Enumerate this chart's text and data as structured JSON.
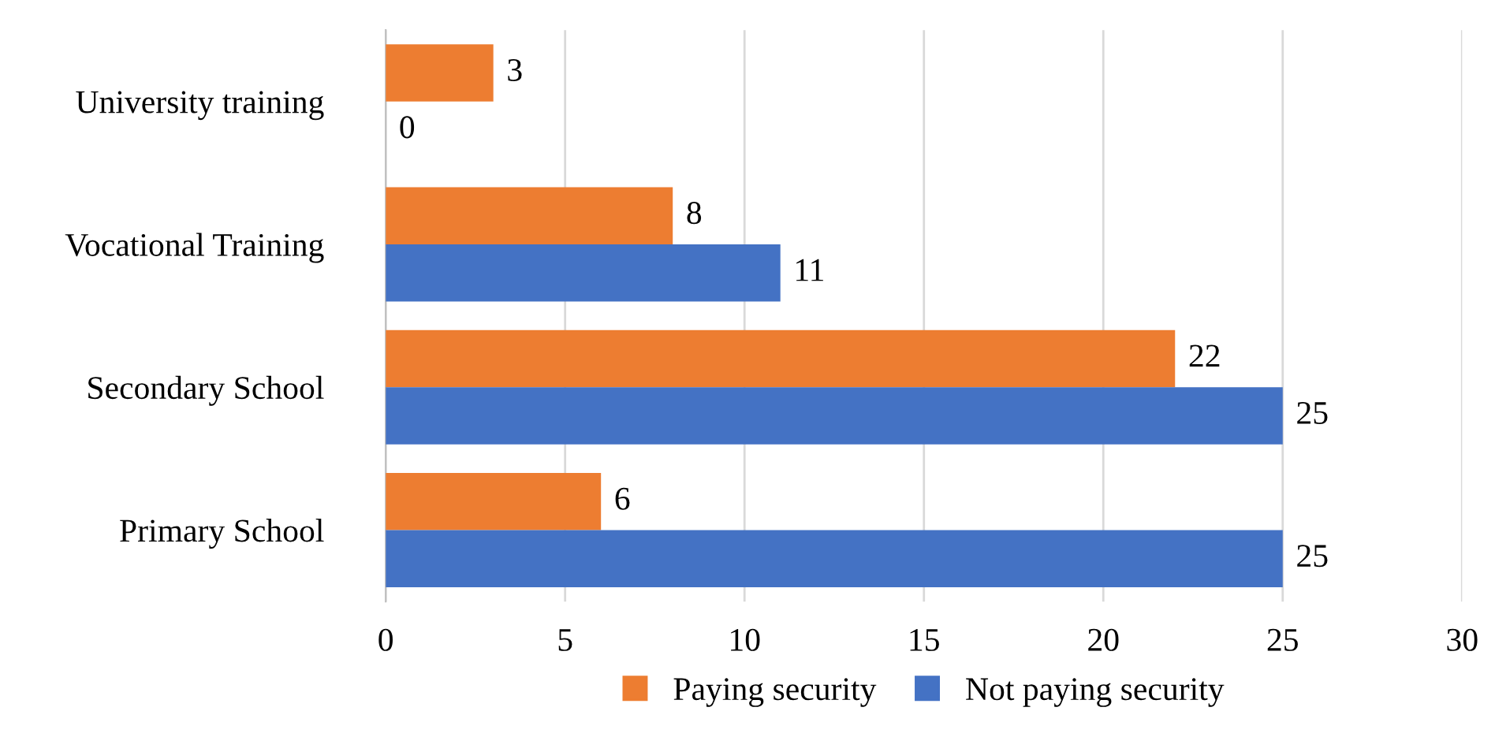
{
  "chart_data": {
    "type": "bar",
    "orientation": "horizontal",
    "categories": [
      "University training",
      "Vocational Training",
      "Secondary School",
      "Primary School"
    ],
    "series": [
      {
        "name": "Paying security",
        "color": "#ed7d31",
        "values": [
          3,
          8,
          22,
          6
        ]
      },
      {
        "name": "Not paying security",
        "color": "#4472c4",
        "values": [
          0,
          11,
          25,
          25
        ]
      }
    ],
    "xlim": [
      0,
      30
    ],
    "xticks": [
      0,
      5,
      10,
      15,
      20,
      25,
      30
    ],
    "grid": "x",
    "legend": "bottom",
    "data_labels": true
  }
}
